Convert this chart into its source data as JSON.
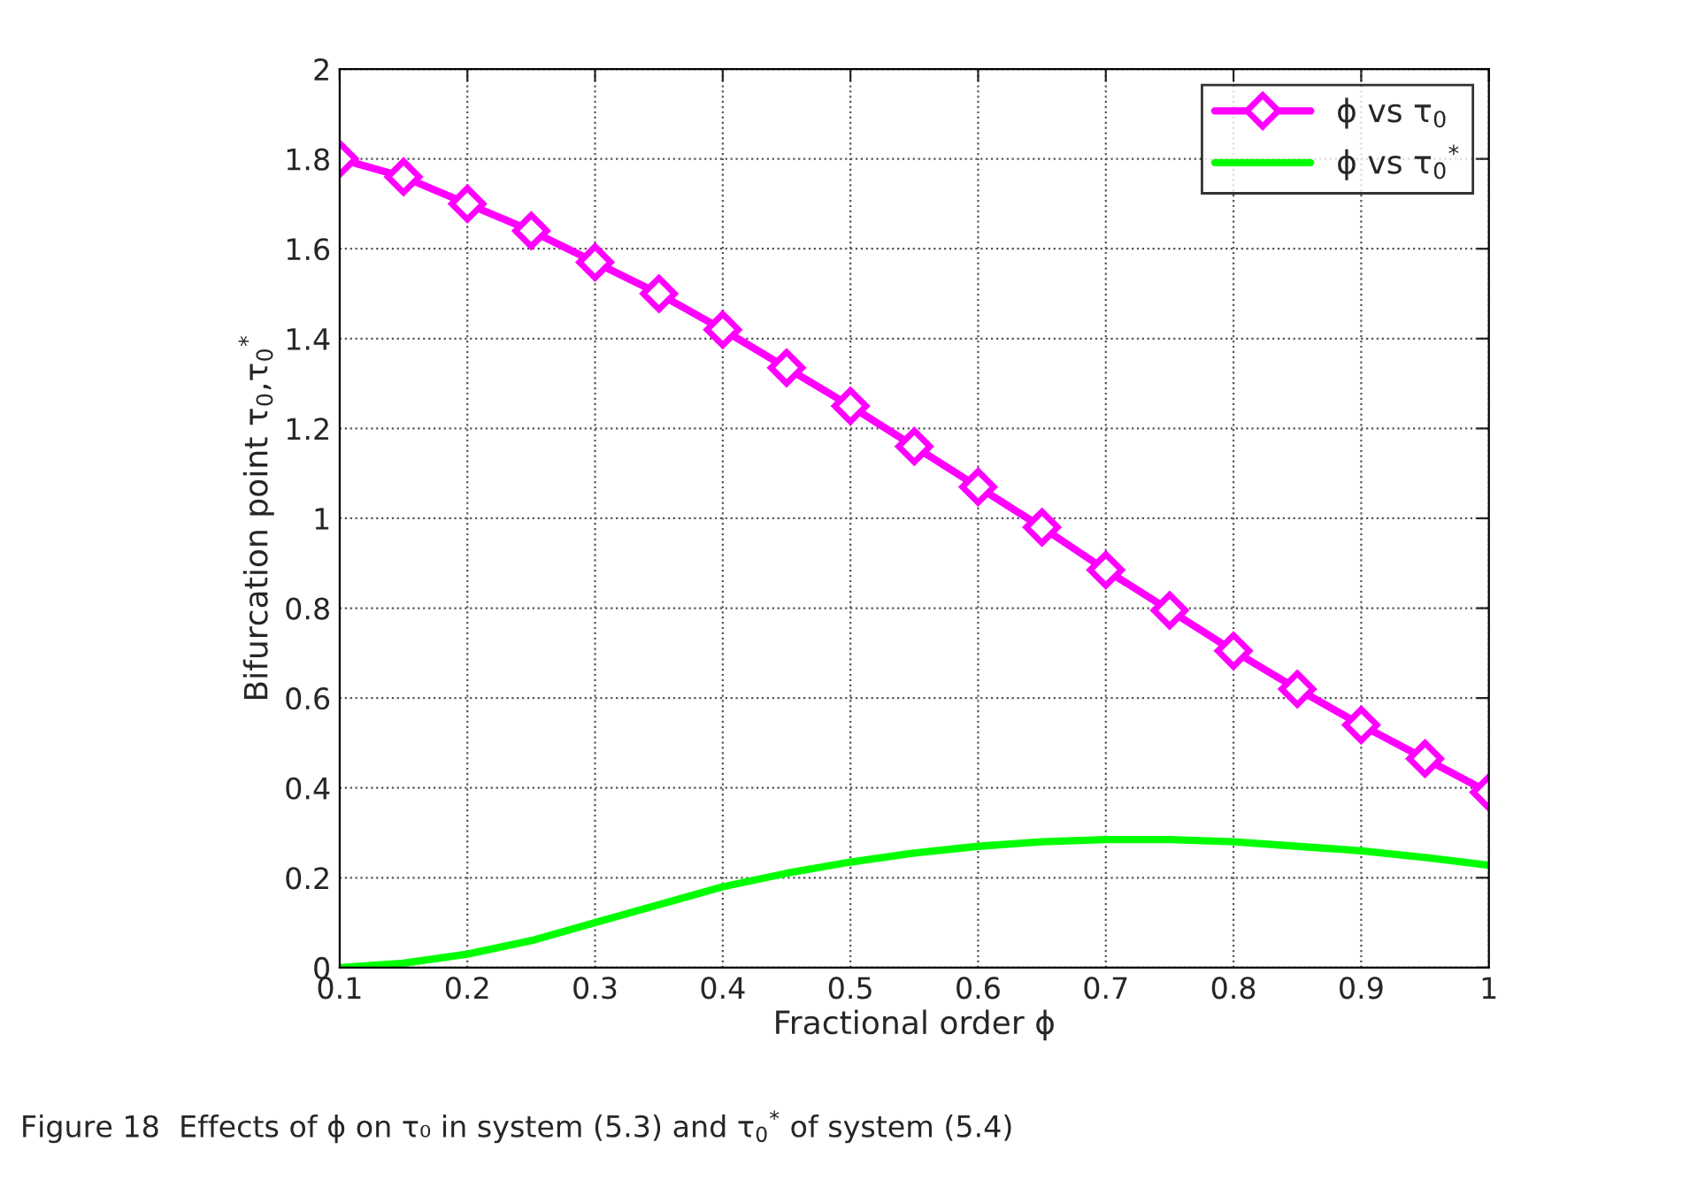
{
  "chart_data": {
    "type": "line",
    "xlabel": "Fractional order ϕ",
    "ylabel": "Bifurcation point τ$_{0}$,τ$_{0}$$^{*}$",
    "x": [
      0.1,
      0.15,
      0.2,
      0.25,
      0.3,
      0.35,
      0.4,
      0.45,
      0.5,
      0.55,
      0.6,
      0.65,
      0.7,
      0.75,
      0.8,
      0.85,
      0.9,
      0.95,
      1.0
    ],
    "series": [
      {
        "name": "ϕ vs τ$_{0}$",
        "color": "#ff00ff",
        "marker": "diamond",
        "values": [
          1.8,
          1.76,
          1.7,
          1.64,
          1.57,
          1.5,
          1.42,
          1.335,
          1.25,
          1.16,
          1.07,
          0.98,
          0.885,
          0.795,
          0.705,
          0.62,
          0.54,
          0.465,
          0.39
        ]
      },
      {
        "name": "ϕ vs τ$_{0}$$^{*}$",
        "color": "#00ff00",
        "marker": "none",
        "values": [
          0.0,
          0.01,
          0.03,
          0.06,
          0.1,
          0.14,
          0.18,
          0.21,
          0.235,
          0.255,
          0.27,
          0.28,
          0.285,
          0.285,
          0.28,
          0.27,
          0.26,
          0.245,
          0.228
        ]
      }
    ],
    "xlim": [
      0.1,
      1
    ],
    "xticks": [
      0.1,
      0.2,
      0.3,
      0.4,
      0.5,
      0.6,
      0.7,
      0.8,
      0.9,
      1
    ],
    "ylim": [
      0,
      2
    ],
    "yticks": [
      0,
      0.2,
      0.4,
      0.6,
      0.8,
      1,
      1.2,
      1.4,
      1.6,
      1.8,
      2
    ],
    "grid": true,
    "legend": "top right",
    "line_style": "solid",
    "annotations": [
      "Figure 18  Effects of ϕ on τ₀ in system (5.3) and τ$_{0}$$^{*}$ of system (5.4)"
    ]
  }
}
